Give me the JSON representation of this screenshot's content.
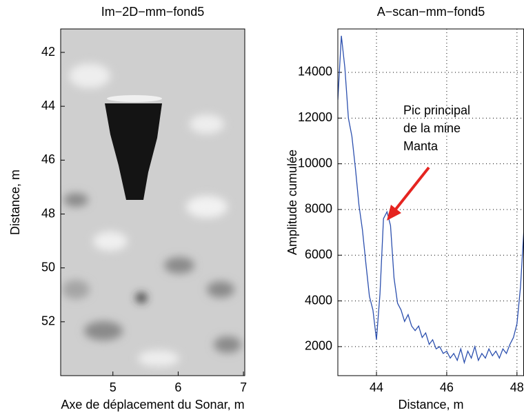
{
  "chart_data": [
    {
      "type": "image",
      "title": "Im−2D−mm−fond5",
      "xlabel": "Axe de déplacement du Sonar, m",
      "ylabel": "Distance, m",
      "xlim": [
        4.2,
        7.02
      ],
      "xticks": [
        5,
        6,
        7
      ],
      "ylim": [
        41.13,
        54.0
      ],
      "yticks": [
        42,
        44,
        46,
        48,
        50,
        52
      ],
      "y_reversed": true
    },
    {
      "type": "line",
      "title": "A−scan−mm−fond5",
      "xlabel": "Distance, m",
      "ylabel": "Amplitude cumulée",
      "xlim": [
        42.9,
        48.2
      ],
      "xticks": [
        44,
        46,
        48
      ],
      "ylim": [
        730,
        15900
      ],
      "yticks": [
        2000,
        4000,
        6000,
        8000,
        10000,
        12000,
        14000
      ],
      "grid": true,
      "annotation": [
        "Pic principal",
        "de la mine",
        "Manta"
      ],
      "series": [
        {
          "color": "#2b4fae",
          "x": [
            42.9,
            43.0,
            43.1,
            43.2,
            43.3,
            43.4,
            43.5,
            43.6,
            43.7,
            43.8,
            43.9,
            44.0,
            44.1,
            44.2,
            44.3,
            44.4,
            44.5,
            44.6,
            44.7,
            44.8,
            44.9,
            45.0,
            45.1,
            45.2,
            45.3,
            45.4,
            45.5,
            45.6,
            45.7,
            45.8,
            45.9,
            46.0,
            46.1,
            46.2,
            46.3,
            46.4,
            46.5,
            46.6,
            46.7,
            46.8,
            46.9,
            47.0,
            47.1,
            47.2,
            47.3,
            47.4,
            47.5,
            47.6,
            47.7,
            47.8,
            47.9,
            48.0,
            48.1,
            48.2
          ],
          "values": [
            12800,
            15600,
            14200,
            12000,
            11200,
            9800,
            8200,
            7100,
            5600,
            4200,
            3600,
            2300,
            4300,
            7600,
            7900,
            7300,
            5000,
            3900,
            3600,
            3100,
            3400,
            2900,
            2700,
            2900,
            2400,
            2600,
            2100,
            2300,
            1900,
            2000,
            1700,
            1800,
            1500,
            1700,
            1400,
            1900,
            1300,
            1800,
            1500,
            2000,
            1400,
            1700,
            1500,
            1900,
            1600,
            1800,
            1500,
            1900,
            1700,
            2100,
            2400,
            3000,
            4600,
            7200
          ]
        }
      ]
    }
  ]
}
